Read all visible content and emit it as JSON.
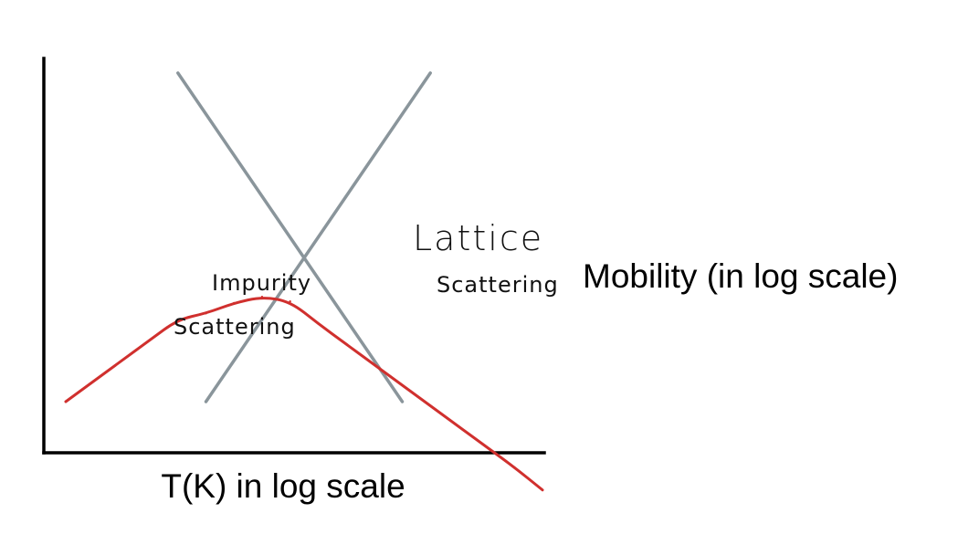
{
  "chart_data": {
    "type": "line",
    "title": "",
    "xlabel": "T(K) in log scale",
    "ylabel": "Mobility (in log scale)",
    "x_scale": "log",
    "y_scale": "log",
    "tick_labels": false,
    "grid": false,
    "legend": "none",
    "annotations": [
      {
        "text": "Impurity Scattering"
      },
      {
        "text": "Lattice Scattering"
      }
    ],
    "series": [
      {
        "values": [
          0,
          5,
          10,
          15,
          20,
          21.5,
          24,
          25.5,
          24.4,
          19,
          14,
          9,
          4,
          -1,
          -6,
          -11,
          -16,
          -21.5
        ]
      },
      {
        "values": [
          -50,
          -40,
          -30,
          -20,
          -10,
          0,
          10,
          20,
          30,
          40,
          50,
          60,
          70,
          80,
          90,
          100,
          110,
          120
        ]
      },
      {
        "values": [
          120,
          110,
          100,
          90,
          80,
          70,
          60,
          50,
          40,
          30,
          20,
          10,
          0,
          -10,
          -20,
          -30,
          -40,
          -50
        ]
      }
    ],
    "x": [
      0,
      1,
      2,
      3,
      4,
      5,
      6,
      7,
      8,
      9,
      10,
      11,
      12,
      13,
      14,
      15,
      16,
      17
    ],
    "colors": {
      "axes": "#000000",
      "asymptotes": "#8a959b",
      "mobility_curve": "#d0302e"
    }
  }
}
